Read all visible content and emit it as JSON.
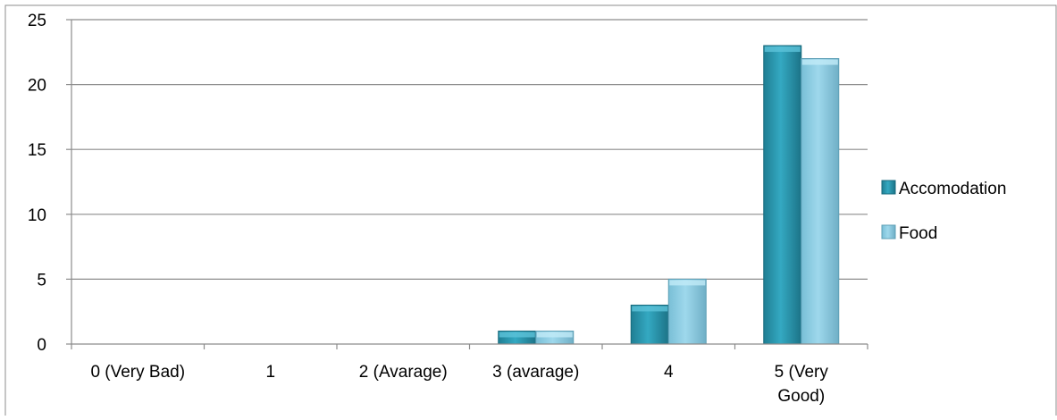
{
  "chart_data": {
    "type": "bar",
    "categories": [
      "0 (Very Bad)",
      "1",
      "2 (Avarage)",
      "3 (avarage)",
      "4",
      "5 (Very Good)"
    ],
    "category_lines": [
      [
        "0 (Very Bad)"
      ],
      [
        "1"
      ],
      [
        "2 (Avarage)"
      ],
      [
        "3 (avarage)"
      ],
      [
        "4"
      ],
      [
        "5 (Very",
        "Good)"
      ]
    ],
    "series": [
      {
        "name": "Accomodation",
        "values": [
          0,
          0,
          0,
          1,
          3,
          23
        ],
        "color": "#2E9BB3"
      },
      {
        "name": "Food",
        "values": [
          0,
          0,
          0,
          1,
          5,
          22
        ],
        "color": "#8FCFE6"
      }
    ],
    "ylim": [
      0,
      25
    ],
    "yticks": [
      0,
      5,
      10,
      15,
      20,
      25
    ],
    "grid": true,
    "legend_position": "right",
    "title": "",
    "xlabel": "",
    "ylabel": ""
  }
}
